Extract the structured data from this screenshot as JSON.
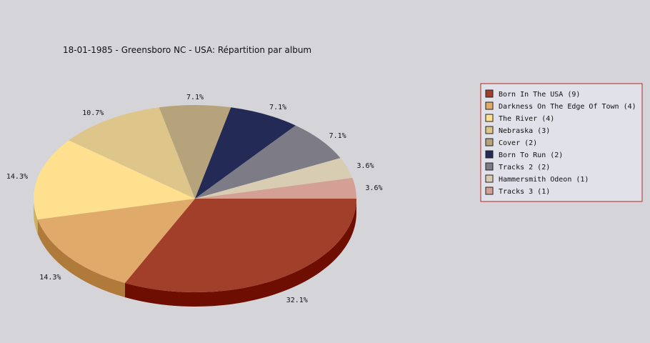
{
  "chart_data": {
    "type": "pie",
    "title": "18-01-1985 - Greensboro NC - USA:  Répartition par album",
    "legend_position": "right",
    "slices": [
      {
        "label": "Born In The USA (9)",
        "value": 9,
        "pct_label": "32.1%",
        "color": "#a23f2a",
        "side_color": "#6e0e00"
      },
      {
        "label": "Darkness On The Edge Of Town (4)",
        "value": 4,
        "pct_label": "14.3%",
        "color": "#e0aa6b",
        "side_color": "#b07a3b"
      },
      {
        "label": "The River (4)",
        "value": 4,
        "pct_label": "14.3%",
        "color": "#fee08f",
        "side_color": "#ceb05f"
      },
      {
        "label": "Nebraska (3)",
        "value": 3,
        "pct_label": "10.7%",
        "color": "#dec68b",
        "side_color": "#ae965b"
      },
      {
        "label": "Cover (2)",
        "value": 2,
        "pct_label": "7.1%",
        "color": "#b7a37b",
        "side_color": "#87734b"
      },
      {
        "label": "Born To Run (2)",
        "value": 2,
        "pct_label": "7.1%",
        "color": "#232a56",
        "side_color": "#000026"
      },
      {
        "label": "Tracks 2 (2)",
        "value": 2,
        "pct_label": "7.1%",
        "color": "#7d7b85",
        "side_color": "#4d4b55"
      },
      {
        "label": "Hammersmith Odeon  (1)",
        "value": 1,
        "pct_label": "3.6%",
        "color": "#d8cdb2",
        "side_color": "#a89d82"
      },
      {
        "label": "Tracks 3 (1)",
        "value": 1,
        "pct_label": "3.6%",
        "color": "#d4a096",
        "side_color": "#a47066"
      }
    ]
  }
}
